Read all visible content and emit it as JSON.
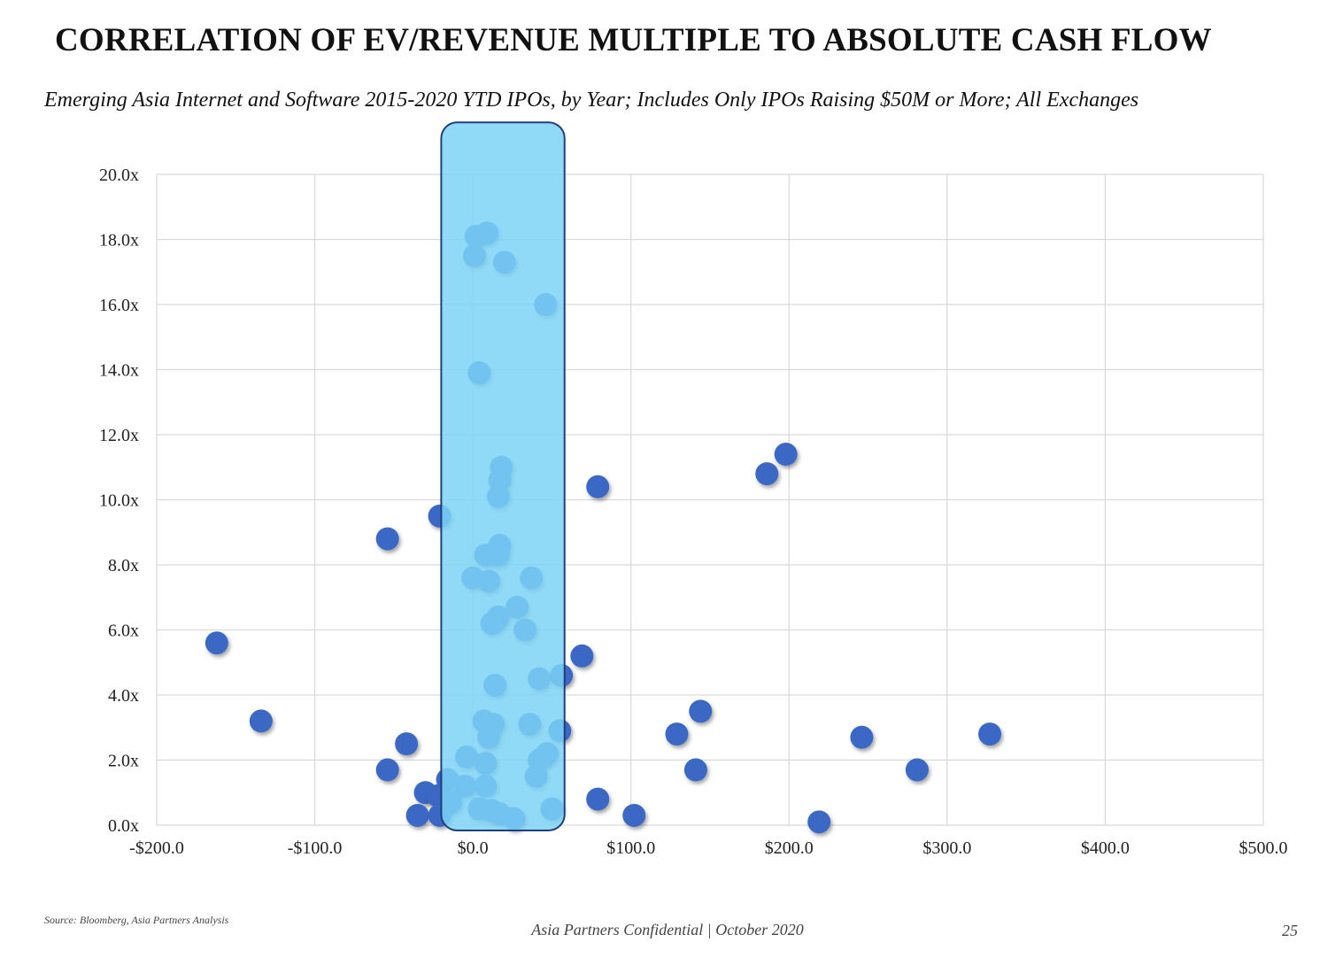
{
  "page": {
    "title": "CORRELATION OF EV/REVENUE MULTIPLE TO ABSOLUTE CASH FLOW",
    "subtitle": "Emerging Asia Internet and Software 2015-2020 YTD IPOs, by Year; Includes Only IPOs Raising $50M or More; All Exchanges",
    "source": "Source: Bloomberg, Asia Partners Analysis",
    "footer": "Asia Partners Confidential | October 2020",
    "page_number": "25"
  },
  "colors": {
    "point": "#3a68c4",
    "highlight_fill": "#7dd3f7",
    "highlight_stroke": "#1f3f7a",
    "grid": "#d9d9d9"
  },
  "chart_data": {
    "type": "scatter",
    "title": "CORRELATION OF EV/REVENUE MULTIPLE TO ABSOLUTE CASH FLOW",
    "xlabel": "",
    "ylabel": "",
    "xlim": [
      -200,
      500
    ],
    "ylim": [
      0,
      20
    ],
    "x_ticks": [
      -200,
      -100,
      0,
      100,
      200,
      300,
      400,
      500
    ],
    "x_tick_labels": [
      "-$200.0",
      "-$100.0",
      "$0.0",
      "$100.0",
      "$200.0",
      "$300.0",
      "$400.0",
      "$500.0"
    ],
    "y_ticks": [
      0,
      2,
      4,
      6,
      8,
      10,
      12,
      14,
      16,
      18,
      20
    ],
    "y_tick_labels": [
      "0.0x",
      "2.0x",
      "4.0x",
      "6.0x",
      "8.0x",
      "10.0x",
      "12.0x",
      "14.0x",
      "16.0x",
      "18.0x",
      "20.0x"
    ],
    "grid": true,
    "highlight_band": {
      "x_range": [
        -20,
        58
      ],
      "y_range": [
        0,
        21.6
      ]
    },
    "series": [
      {
        "name": "IPOs",
        "points": [
          {
            "x": 2,
            "y": 18.1
          },
          {
            "x": 9,
            "y": 18.2
          },
          {
            "x": 1,
            "y": 17.5
          },
          {
            "x": 20,
            "y": 17.3
          },
          {
            "x": 46,
            "y": 16.0
          },
          {
            "x": 4,
            "y": 13.9
          },
          {
            "x": 18,
            "y": 11.0
          },
          {
            "x": 17,
            "y": 10.6
          },
          {
            "x": 16,
            "y": 10.1
          },
          {
            "x": 79,
            "y": 10.4
          },
          {
            "x": 186,
            "y": 10.8
          },
          {
            "x": 198,
            "y": 11.4
          },
          {
            "x": -21,
            "y": 9.5
          },
          {
            "x": -54,
            "y": 8.8
          },
          {
            "x": 8,
            "y": 8.3
          },
          {
            "x": 17,
            "y": 8.6
          },
          {
            "x": 16,
            "y": 8.3
          },
          {
            "x": 0,
            "y": 7.6
          },
          {
            "x": 10,
            "y": 7.5
          },
          {
            "x": 37,
            "y": 7.6
          },
          {
            "x": 28,
            "y": 6.7
          },
          {
            "x": 16,
            "y": 6.4
          },
          {
            "x": 12,
            "y": 6.2
          },
          {
            "x": 33,
            "y": 6.0
          },
          {
            "x": -162,
            "y": 5.6
          },
          {
            "x": 69,
            "y": 5.2
          },
          {
            "x": 56,
            "y": 4.6
          },
          {
            "x": 42,
            "y": 4.5
          },
          {
            "x": 14,
            "y": 4.3
          },
          {
            "x": 144,
            "y": 3.5
          },
          {
            "x": -134,
            "y": 3.2
          },
          {
            "x": 7,
            "y": 3.2
          },
          {
            "x": 13,
            "y": 3.1
          },
          {
            "x": 36,
            "y": 3.1
          },
          {
            "x": 55,
            "y": 2.9
          },
          {
            "x": 10,
            "y": 2.7
          },
          {
            "x": 129,
            "y": 2.8
          },
          {
            "x": 246,
            "y": 2.7
          },
          {
            "x": 327,
            "y": 2.8
          },
          {
            "x": -42,
            "y": 2.5
          },
          {
            "x": 47,
            "y": 2.2
          },
          {
            "x": 42,
            "y": 2.0
          },
          {
            "x": -4,
            "y": 2.1
          },
          {
            "x": 8,
            "y": 1.9
          },
          {
            "x": -54,
            "y": 1.7
          },
          {
            "x": 141,
            "y": 1.7
          },
          {
            "x": 281,
            "y": 1.7
          },
          {
            "x": 40,
            "y": 1.5
          },
          {
            "x": -16,
            "y": 1.4
          },
          {
            "x": -30,
            "y": 1.0
          },
          {
            "x": -22,
            "y": 0.9
          },
          {
            "x": -5,
            "y": 1.2
          },
          {
            "x": 8,
            "y": 1.2
          },
          {
            "x": -14,
            "y": 0.7
          },
          {
            "x": 79,
            "y": 0.8
          },
          {
            "x": 4,
            "y": 0.5
          },
          {
            "x": 12,
            "y": 0.45
          },
          {
            "x": 17,
            "y": 0.35
          },
          {
            "x": 50,
            "y": 0.5
          },
          {
            "x": 26,
            "y": 0.2
          },
          {
            "x": -35,
            "y": 0.3
          },
          {
            "x": -21,
            "y": 0.3
          },
          {
            "x": 102,
            "y": 0.3
          },
          {
            "x": 219,
            "y": 0.1
          }
        ]
      }
    ]
  }
}
